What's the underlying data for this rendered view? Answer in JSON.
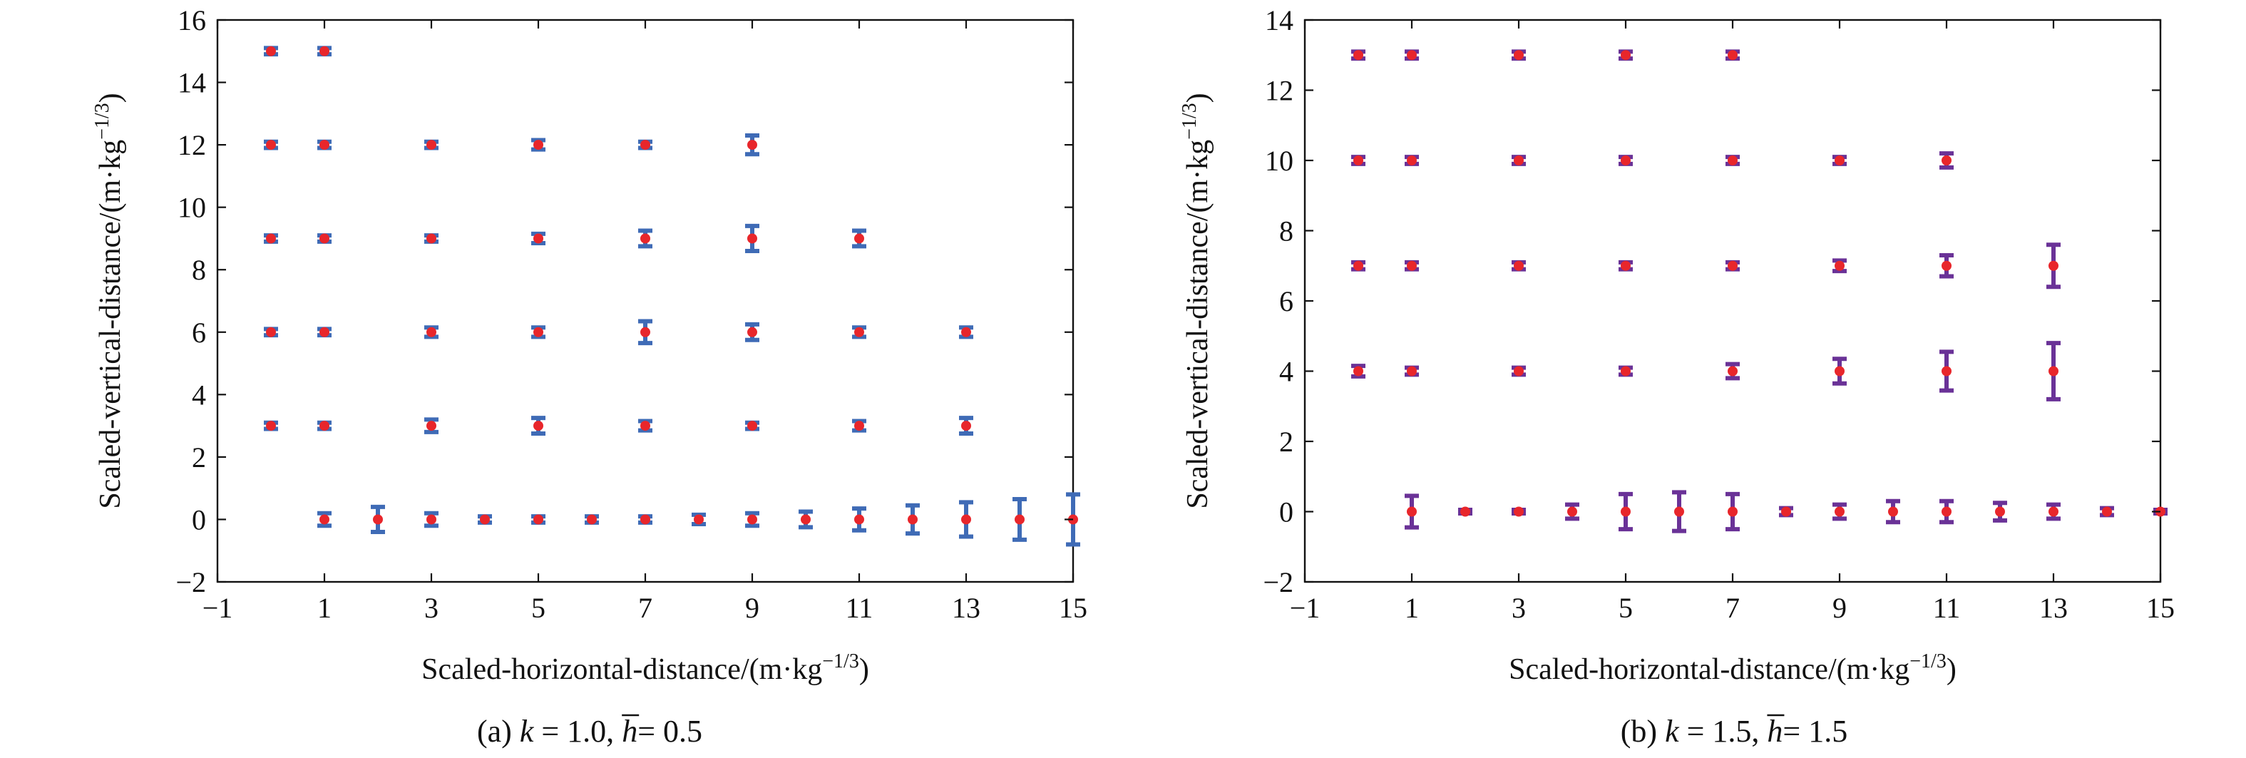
{
  "chart_data": [
    {
      "type": "errorbar",
      "caption": "(a) k = 1.0,  h = 0.5",
      "caption_parts": {
        "prefix": "(a) ",
        "k_symbol": "k",
        "k_eq": " = 1.0,  ",
        "h_symbol": "h",
        "h_eq": "= 0.5"
      },
      "xlabel": "Scaled-horizontal-distance/(m·kg",
      "ylabel": "Scaled-vertical-distance/(m·kg",
      "unit_exponent": "−1/3",
      "xlim": [
        -1,
        15
      ],
      "ylim": [
        -2,
        16
      ],
      "xticks": [
        -1,
        1,
        3,
        5,
        7,
        9,
        11,
        13,
        15
      ],
      "xtick_labels": [
        "−1",
        "1",
        "3",
        "5",
        "7",
        "9",
        "11",
        "13",
        "15"
      ],
      "yticks": [
        -2,
        0,
        2,
        4,
        6,
        8,
        10,
        12,
        14,
        16
      ],
      "ytick_labels": [
        "−2",
        "0",
        "2",
        "4",
        "6",
        "8",
        "10",
        "12",
        "14",
        "16"
      ],
      "errorbar_color": "#3f6bb6",
      "marker_color": "#e8262b",
      "points": [
        {
          "x": 0,
          "y": 15,
          "err": 0.1
        },
        {
          "x": 1,
          "y": 15,
          "err": 0.1
        },
        {
          "x": 0,
          "y": 12,
          "err": 0.1
        },
        {
          "x": 1,
          "y": 12,
          "err": 0.1
        },
        {
          "x": 3,
          "y": 12,
          "err": 0.1
        },
        {
          "x": 5,
          "y": 12,
          "err": 0.15
        },
        {
          "x": 7,
          "y": 12,
          "err": 0.1
        },
        {
          "x": 9,
          "y": 12,
          "err": 0.3
        },
        {
          "x": 0,
          "y": 9,
          "err": 0.1
        },
        {
          "x": 1,
          "y": 9,
          "err": 0.1
        },
        {
          "x": 3,
          "y": 9,
          "err": 0.1
        },
        {
          "x": 5,
          "y": 9,
          "err": 0.15
        },
        {
          "x": 7,
          "y": 9,
          "err": 0.25
        },
        {
          "x": 9,
          "y": 9,
          "err": 0.4
        },
        {
          "x": 11,
          "y": 9,
          "err": 0.25
        },
        {
          "x": 0,
          "y": 6,
          "err": 0.1
        },
        {
          "x": 1,
          "y": 6,
          "err": 0.1
        },
        {
          "x": 3,
          "y": 6,
          "err": 0.15
        },
        {
          "x": 5,
          "y": 6,
          "err": 0.15
        },
        {
          "x": 7,
          "y": 6,
          "err": 0.35
        },
        {
          "x": 9,
          "y": 6,
          "err": 0.25
        },
        {
          "x": 11,
          "y": 6,
          "err": 0.15
        },
        {
          "x": 13,
          "y": 6,
          "err": 0.15
        },
        {
          "x": 0,
          "y": 3,
          "err": 0.1
        },
        {
          "x": 1,
          "y": 3,
          "err": 0.1
        },
        {
          "x": 3,
          "y": 3,
          "err": 0.2
        },
        {
          "x": 5,
          "y": 3,
          "err": 0.25
        },
        {
          "x": 7,
          "y": 3,
          "err": 0.15
        },
        {
          "x": 9,
          "y": 3,
          "err": 0.1
        },
        {
          "x": 11,
          "y": 3,
          "err": 0.15
        },
        {
          "x": 13,
          "y": 3,
          "err": 0.25
        },
        {
          "x": 1,
          "y": 0,
          "err": 0.2
        },
        {
          "x": 2,
          "y": 0,
          "err": 0.4
        },
        {
          "x": 3,
          "y": 0,
          "err": 0.2
        },
        {
          "x": 4,
          "y": 0,
          "err": 0.1
        },
        {
          "x": 5,
          "y": 0,
          "err": 0.1
        },
        {
          "x": 6,
          "y": 0,
          "err": 0.1
        },
        {
          "x": 7,
          "y": 0,
          "err": 0.1
        },
        {
          "x": 8,
          "y": 0,
          "err": 0.15
        },
        {
          "x": 9,
          "y": 0,
          "err": 0.2
        },
        {
          "x": 10,
          "y": 0,
          "err": 0.25
        },
        {
          "x": 11,
          "y": 0,
          "err": 0.35
        },
        {
          "x": 12,
          "y": 0,
          "err": 0.45
        },
        {
          "x": 13,
          "y": 0,
          "err": 0.55
        },
        {
          "x": 14,
          "y": 0,
          "err": 0.65
        },
        {
          "x": 15,
          "y": 0,
          "err": 0.8
        }
      ]
    },
    {
      "type": "errorbar",
      "caption": "(b) k = 1.5,  h = 1.5",
      "caption_parts": {
        "prefix": "(b) ",
        "k_symbol": "k",
        "k_eq": " = 1.5,  ",
        "h_symbol": "h",
        "h_eq": "= 1.5"
      },
      "xlabel": "Scaled-horizontal-distance/(m·kg",
      "ylabel": "Scaled-vertical-distance/(m·kg",
      "unit_exponent": "−1/3",
      "xlim": [
        -1,
        15
      ],
      "ylim": [
        -2,
        14
      ],
      "xticks": [
        -1,
        1,
        3,
        5,
        7,
        9,
        11,
        13,
        15
      ],
      "xtick_labels": [
        "−1",
        "1",
        "3",
        "5",
        "7",
        "9",
        "11",
        "13",
        "15"
      ],
      "yticks": [
        -2,
        0,
        2,
        4,
        6,
        8,
        10,
        12,
        14
      ],
      "ytick_labels": [
        "−2",
        "0",
        "2",
        "4",
        "6",
        "8",
        "10",
        "12",
        "14"
      ],
      "errorbar_color": "#6a3297",
      "marker_color": "#e8262b",
      "points": [
        {
          "x": 0,
          "y": 13,
          "err": 0.1
        },
        {
          "x": 1,
          "y": 13,
          "err": 0.1
        },
        {
          "x": 3,
          "y": 13,
          "err": 0.1
        },
        {
          "x": 5,
          "y": 13,
          "err": 0.1
        },
        {
          "x": 7,
          "y": 13,
          "err": 0.1
        },
        {
          "x": 0,
          "y": 10,
          "err": 0.1
        },
        {
          "x": 1,
          "y": 10,
          "err": 0.1
        },
        {
          "x": 3,
          "y": 10,
          "err": 0.1
        },
        {
          "x": 5,
          "y": 10,
          "err": 0.1
        },
        {
          "x": 7,
          "y": 10,
          "err": 0.1
        },
        {
          "x": 9,
          "y": 10,
          "err": 0.1
        },
        {
          "x": 11,
          "y": 10,
          "err": 0.2
        },
        {
          "x": 0,
          "y": 7,
          "err": 0.1
        },
        {
          "x": 1,
          "y": 7,
          "err": 0.1
        },
        {
          "x": 3,
          "y": 7,
          "err": 0.1
        },
        {
          "x": 5,
          "y": 7,
          "err": 0.1
        },
        {
          "x": 7,
          "y": 7,
          "err": 0.1
        },
        {
          "x": 9,
          "y": 7,
          "err": 0.15
        },
        {
          "x": 11,
          "y": 7,
          "err": 0.3
        },
        {
          "x": 13,
          "y": 7,
          "err": 0.6
        },
        {
          "x": 0,
          "y": 4,
          "err": 0.15
        },
        {
          "x": 1,
          "y": 4,
          "err": 0.1
        },
        {
          "x": 3,
          "y": 4,
          "err": 0.1
        },
        {
          "x": 5,
          "y": 4,
          "err": 0.1
        },
        {
          "x": 7,
          "y": 4,
          "err": 0.2
        },
        {
          "x": 9,
          "y": 4,
          "err": 0.35
        },
        {
          "x": 11,
          "y": 4,
          "err": 0.55
        },
        {
          "x": 13,
          "y": 4,
          "err": 0.8
        },
        {
          "x": 1,
          "y": 0,
          "err": 0.45
        },
        {
          "x": 2,
          "y": 0,
          "err": 0.05
        },
        {
          "x": 3,
          "y": 0,
          "err": 0.05
        },
        {
          "x": 4,
          "y": 0,
          "err": 0.2
        },
        {
          "x": 5,
          "y": 0,
          "err": 0.5
        },
        {
          "x": 6,
          "y": 0,
          "err": 0.55
        },
        {
          "x": 7,
          "y": 0,
          "err": 0.5
        },
        {
          "x": 8,
          "y": 0,
          "err": 0.1
        },
        {
          "x": 9,
          "y": 0,
          "err": 0.2
        },
        {
          "x": 10,
          "y": 0,
          "err": 0.3
        },
        {
          "x": 11,
          "y": 0,
          "err": 0.3
        },
        {
          "x": 12,
          "y": 0,
          "err": 0.25
        },
        {
          "x": 13,
          "y": 0,
          "err": 0.2
        },
        {
          "x": 14,
          "y": 0,
          "err": 0.1
        },
        {
          "x": 15,
          "y": 0,
          "err": 0.05
        }
      ]
    }
  ]
}
